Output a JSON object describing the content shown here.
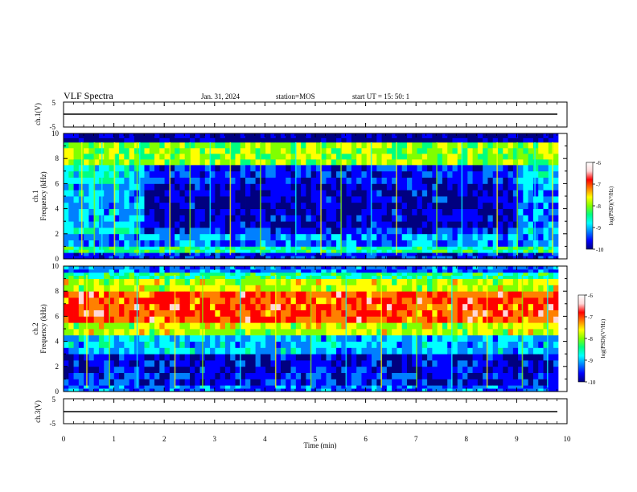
{
  "header": {
    "title": "VLF Spectra",
    "date": "Jan. 31, 2024",
    "station": "station=MOS",
    "start": "start UT =  15: 50: 1"
  },
  "colors": {
    "colormap": [
      "#000080",
      "#0000ff",
      "#0080ff",
      "#00ffff",
      "#00ff80",
      "#80ff00",
      "#ffff00",
      "#ff8000",
      "#ff0000",
      "#ffd8d8",
      "#ffffff"
    ],
    "trace": "#000000",
    "background": "#ffffff"
  },
  "chart_data": [
    {
      "type": "line",
      "panel": "ch1_waveform",
      "ylabel": "ch.1(V)",
      "ylim": [
        -5,
        5
      ],
      "yticks": [
        "5",
        "-5"
      ],
      "x": [
        0,
        10
      ],
      "series": [
        {
          "values": [
            0,
            0
          ]
        }
      ]
    },
    {
      "type": "heatmap",
      "panel": "ch1_spectrogram",
      "ylabel": "ch.1\nFrequency (kHz)",
      "ylim": [
        0,
        10
      ],
      "yticks": [
        "0",
        "2",
        "4",
        "6",
        "8",
        "10"
      ],
      "xlim": [
        0,
        9.83
      ],
      "colorbar": {
        "label": "log(PSD)(V²/Hz)",
        "ticks": [
          "-6",
          "-7",
          "-8",
          "-9",
          "-10"
        ],
        "range": [
          -10,
          -6
        ]
      },
      "time_segments": [
        {
          "t_start": 0.0,
          "t_end": 1.6,
          "mean_log_psd_2_to_8kHz": -9.0
        },
        {
          "t_start": 1.6,
          "t_end": 9.0,
          "mean_log_psd_2_to_8kHz": -9.8
        },
        {
          "t_start": 9.0,
          "t_end": 9.83,
          "mean_log_psd_2_to_8kHz": -9.2
        }
      ],
      "frequency_bands": [
        {
          "f_low": 0.0,
          "f_high": 0.5,
          "log_psd": -9.6
        },
        {
          "f_low": 0.5,
          "f_high": 1.0,
          "log_psd": -8.5
        },
        {
          "f_low": 1.0,
          "f_high": 2.5,
          "log_psd": -9.2
        },
        {
          "f_low": 2.5,
          "f_high": 6.0,
          "log_psd": -9.5
        },
        {
          "f_low": 6.0,
          "f_high": 7.5,
          "log_psd": -9.2
        },
        {
          "f_low": 7.5,
          "f_high": 9.3,
          "log_psd": -8.0
        },
        {
          "f_low": 9.3,
          "f_high": 10.0,
          "log_psd": -10.0
        }
      ],
      "impulsive_bursts_min": [
        0.35,
        0.6,
        0.75,
        1.0,
        1.45,
        1.5,
        2.1,
        2.5,
        2.9,
        3.3,
        3.9,
        4.6,
        5.1,
        5.5,
        6.1,
        6.6,
        7.4,
        7.9,
        8.6,
        9.0,
        9.35,
        9.7
      ]
    },
    {
      "type": "heatmap",
      "panel": "ch2_spectrogram",
      "ylabel": "ch.2\nFrequency (kHz)",
      "ylim": [
        0,
        10
      ],
      "yticks": [
        "0",
        "2",
        "4",
        "6",
        "8",
        "10"
      ],
      "xlim": [
        0,
        9.83
      ],
      "colorbar": {
        "label": "log(PSD)(V²/Hz)",
        "ticks": [
          "-6",
          "-7",
          "-8",
          "-9",
          "-10"
        ],
        "range": [
          -10,
          -6
        ]
      },
      "frequency_bands": [
        {
          "f_low": 0.0,
          "f_high": 0.5,
          "log_psd": -9.3
        },
        {
          "f_low": 0.5,
          "f_high": 1.5,
          "log_psd": -9.6
        },
        {
          "f_low": 1.5,
          "f_high": 3.0,
          "log_psd": -9.7
        },
        {
          "f_low": 3.0,
          "f_high": 4.5,
          "log_psd": -9.0
        },
        {
          "f_low": 4.5,
          "f_high": 5.5,
          "log_psd": -7.8
        },
        {
          "f_low": 5.5,
          "f_high": 8.0,
          "log_psd": -7.0
        },
        {
          "f_low": 8.0,
          "f_high": 9.0,
          "log_psd": -7.8
        },
        {
          "f_low": 9.0,
          "f_high": 9.5,
          "log_psd": -8.5
        },
        {
          "f_low": 9.5,
          "f_high": 10.0,
          "log_psd": -9.3
        }
      ],
      "impulsive_bursts_min": [
        0.45,
        0.9,
        1.45,
        2.2,
        2.75,
        3.5,
        4.2,
        4.9,
        5.6,
        6.3,
        7.0,
        7.7,
        8.4,
        9.1,
        9.6
      ]
    },
    {
      "type": "line",
      "panel": "ch3_waveform",
      "ylabel": "ch.3(V)",
      "ylim": [
        -5,
        5
      ],
      "yticks": [
        "5",
        "-5"
      ],
      "x": [
        0,
        10
      ],
      "series": [
        {
          "values": [
            0,
            0
          ]
        }
      ]
    }
  ],
  "x_axis": {
    "label": "Time (min)",
    "ticks": [
      "0",
      "1",
      "2",
      "3",
      "4",
      "5",
      "6",
      "7",
      "8",
      "9",
      "10"
    ],
    "range": [
      0,
      10
    ]
  }
}
